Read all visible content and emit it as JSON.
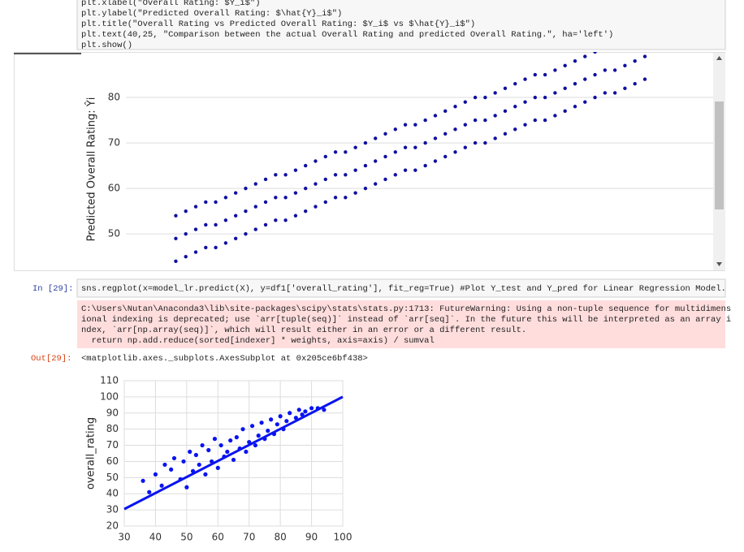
{
  "notebook": {
    "top_cell_lines": [
      "plt.xlabel(\"Overall Rating: $Y_i$\")",
      "plt.ylabel(\"Predicted Overall Rating: $\\hat{Y}_i$\")",
      "plt.title(\"Overall Rating vs Predicted Overall Rating: $Y_i$ vs $\\hat{Y}_i$\")",
      "plt.text(40,25, \"Comparison between the actual Overall Rating and predicted Overall Rating.\", ha='left')",
      "plt.show()"
    ],
    "in_prompt": "In [29]:",
    "in_code": "sns.regplot(x=model_lr.predict(X), y=df1['overall_rating'], fit_reg=True) #Plot Y_test and Y_pred for Linear Regression Model.",
    "stderr_lines": [
      "C:\\Users\\Nutan\\Anaconda3\\lib\\site-packages\\scipy\\stats\\stats.py:1713: FutureWarning: Using a non-tuple sequence for multidimens",
      "ional indexing is deprecated; use `arr[tuple(seq)]` instead of `arr[seq]`. In the future this will be interpreted as an array i",
      "ndex, `arr[np.array(seq)]`, which will result either in an error or a different result.",
      "  return np.add.reduce(sorted[indexer] * weights, axis=axis) / sumval"
    ],
    "out_prompt": "Out[29]:",
    "out_text": "<matplotlib.axes._subplots.AxesSubplot at 0x205ce6bf438>"
  },
  "chart_data": [
    {
      "type": "scatter",
      "ylabel": "Predicted Overall Rating: Ŷi",
      "color": "#1010a0",
      "xlim": [
        42,
        101
      ],
      "ylim": [
        42,
        90
      ],
      "yticks": [
        50,
        60,
        70,
        80
      ],
      "grid": true,
      "x": [
        47,
        47,
        47,
        48,
        48,
        48,
        49,
        49,
        49,
        50,
        50,
        50,
        51,
        51,
        51,
        52,
        52,
        52,
        53,
        53,
        53,
        54,
        54,
        54,
        55,
        55,
        55,
        56,
        56,
        56,
        57,
        57,
        57,
        58,
        58,
        58,
        59,
        59,
        59,
        60,
        60,
        60,
        61,
        61,
        61,
        62,
        62,
        62,
        63,
        63,
        63,
        64,
        64,
        64,
        65,
        65,
        65,
        66,
        66,
        66,
        67,
        67,
        67,
        68,
        68,
        68,
        69,
        69,
        69,
        70,
        70,
        70,
        71,
        71,
        71,
        72,
        72,
        72,
        73,
        73,
        73,
        74,
        74,
        74,
        75,
        75,
        75,
        76,
        76,
        76,
        77,
        77,
        77,
        78,
        78,
        78,
        79,
        79,
        79,
        80,
        80,
        80,
        81,
        81,
        81,
        82,
        82,
        82,
        83,
        83,
        83,
        84,
        84,
        84,
        85,
        85,
        85,
        86,
        86,
        86,
        87,
        87,
        87,
        88,
        88,
        88,
        89,
        89,
        89,
        90,
        90,
        90,
        91,
        91,
        91,
        92,
        92,
        92,
        93,
        93,
        93,
        94,
        94,
        94
      ],
      "values": [
        44,
        49,
        54,
        45,
        50,
        55,
        46,
        51,
        56,
        47,
        52,
        57,
        47,
        52,
        57,
        48,
        53,
        58,
        49,
        54,
        59,
        50,
        55,
        60,
        51,
        56,
        61,
        52,
        57,
        62,
        53,
        58,
        63,
        53,
        58,
        63,
        54,
        59,
        64,
        55,
        60,
        65,
        56,
        61,
        66,
        57,
        62,
        67,
        58,
        63,
        68,
        58,
        63,
        68,
        59,
        64,
        69,
        60,
        65,
        70,
        61,
        66,
        71,
        62,
        67,
        72,
        63,
        68,
        73,
        64,
        69,
        74,
        64,
        69,
        74,
        65,
        70,
        75,
        66,
        71,
        76,
        67,
        72,
        77,
        68,
        73,
        78,
        69,
        74,
        79,
        70,
        75,
        80,
        70,
        75,
        80,
        71,
        76,
        81,
        72,
        77,
        82,
        73,
        78,
        83,
        74,
        79,
        84,
        75,
        80,
        85,
        75,
        80,
        85,
        76,
        81,
        86,
        77,
        82,
        87,
        78,
        83,
        88,
        79,
        84,
        89,
        80,
        85,
        90,
        81,
        86,
        91,
        81,
        86,
        91,
        82,
        87,
        92,
        83,
        88,
        93,
        84,
        89,
        94
      ]
    },
    {
      "type": "scatter",
      "ylabel": "overall_rating",
      "color": "#0a14f0",
      "xlim": [
        30,
        100
      ],
      "ylim": [
        20,
        110
      ],
      "xticks": [
        30,
        40,
        50,
        60,
        70,
        80,
        90,
        100
      ],
      "yticks": [
        20,
        30,
        40,
        50,
        60,
        70,
        80,
        90,
        100,
        110
      ],
      "grid": true,
      "x": [
        36,
        38,
        40,
        42,
        43,
        45,
        46,
        48,
        49,
        50,
        51,
        52,
        53,
        54,
        55,
        56,
        57,
        58,
        59,
        60,
        61,
        62,
        63,
        64,
        65,
        66,
        67,
        68,
        69,
        70,
        71,
        72,
        73,
        74,
        75,
        76,
        77,
        78,
        79,
        80,
        81,
        82,
        83,
        85,
        86,
        87,
        88,
        90,
        92,
        94
      ],
      "values": [
        48,
        41,
        52,
        45,
        58,
        55,
        62,
        49,
        60,
        44,
        66,
        54,
        64,
        58,
        70,
        52,
        67,
        60,
        74,
        56,
        70,
        63,
        66,
        73,
        61,
        75,
        68,
        80,
        66,
        72,
        82,
        70,
        76,
        84,
        74,
        79,
        86,
        77,
        83,
        88,
        80,
        85,
        90,
        87,
        92,
        89,
        91,
        93,
        93,
        92
      ],
      "fit_line": {
        "x": [
          30,
          100
        ],
        "values": [
          30.5,
          100
        ]
      }
    }
  ]
}
